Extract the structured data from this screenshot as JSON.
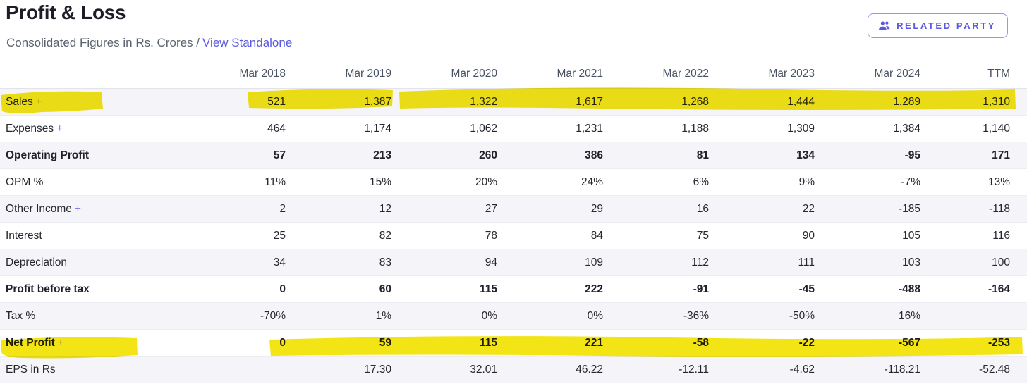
{
  "header": {
    "title": "Profit & Loss",
    "subtitle_prefix": "Consolidated Figures in Rs. Crores /",
    "link_label": "View Standalone",
    "related_party_label": "RELATED PARTY"
  },
  "colors": {
    "accent": "#5a5ae0",
    "plus": "#8080f2",
    "highlight": "#f2e202",
    "stripe_bg": "#f5f5f9"
  },
  "table": {
    "columns": [
      "Mar 2018",
      "Mar 2019",
      "Mar 2020",
      "Mar 2021",
      "Mar 2022",
      "Mar 2023",
      "Mar 2024",
      "TTM"
    ],
    "rows": [
      {
        "label": "Sales",
        "plus": true,
        "bold": false,
        "highlighted": true,
        "values": [
          "521",
          "1,387",
          "1,322",
          "1,617",
          "1,268",
          "1,444",
          "1,289",
          "1,310"
        ]
      },
      {
        "label": "Expenses",
        "plus": true,
        "bold": false,
        "highlighted": false,
        "values": [
          "464",
          "1,174",
          "1,062",
          "1,231",
          "1,188",
          "1,309",
          "1,384",
          "1,140"
        ]
      },
      {
        "label": "Operating Profit",
        "plus": false,
        "bold": true,
        "highlighted": false,
        "values": [
          "57",
          "213",
          "260",
          "386",
          "81",
          "134",
          "-95",
          "171"
        ]
      },
      {
        "label": "OPM %",
        "plus": false,
        "bold": false,
        "highlighted": false,
        "values": [
          "11%",
          "15%",
          "20%",
          "24%",
          "6%",
          "9%",
          "-7%",
          "13%"
        ]
      },
      {
        "label": "Other Income",
        "plus": true,
        "bold": false,
        "highlighted": false,
        "values": [
          "2",
          "12",
          "27",
          "29",
          "16",
          "22",
          "-185",
          "-118"
        ]
      },
      {
        "label": "Interest",
        "plus": false,
        "bold": false,
        "highlighted": false,
        "values": [
          "25",
          "82",
          "78",
          "84",
          "75",
          "90",
          "105",
          "116"
        ]
      },
      {
        "label": "Depreciation",
        "plus": false,
        "bold": false,
        "highlighted": false,
        "values": [
          "34",
          "83",
          "94",
          "109",
          "112",
          "111",
          "103",
          "100"
        ]
      },
      {
        "label": "Profit before tax",
        "plus": false,
        "bold": true,
        "highlighted": false,
        "values": [
          "0",
          "60",
          "115",
          "222",
          "-91",
          "-45",
          "-488",
          "-164"
        ]
      },
      {
        "label": "Tax %",
        "plus": false,
        "bold": false,
        "highlighted": false,
        "values": [
          "-70%",
          "1%",
          "0%",
          "0%",
          "-36%",
          "-50%",
          "16%",
          ""
        ]
      },
      {
        "label": "Net Profit",
        "plus": true,
        "bold": true,
        "highlighted": true,
        "values": [
          "0",
          "59",
          "115",
          "221",
          "-58",
          "-22",
          "-567",
          "-253"
        ]
      },
      {
        "label": "EPS in Rs",
        "plus": false,
        "bold": false,
        "highlighted": false,
        "values": [
          "",
          "17.30",
          "32.01",
          "46.22",
          "-12.11",
          "-4.62",
          "-118.21",
          "-52.48"
        ]
      }
    ]
  }
}
